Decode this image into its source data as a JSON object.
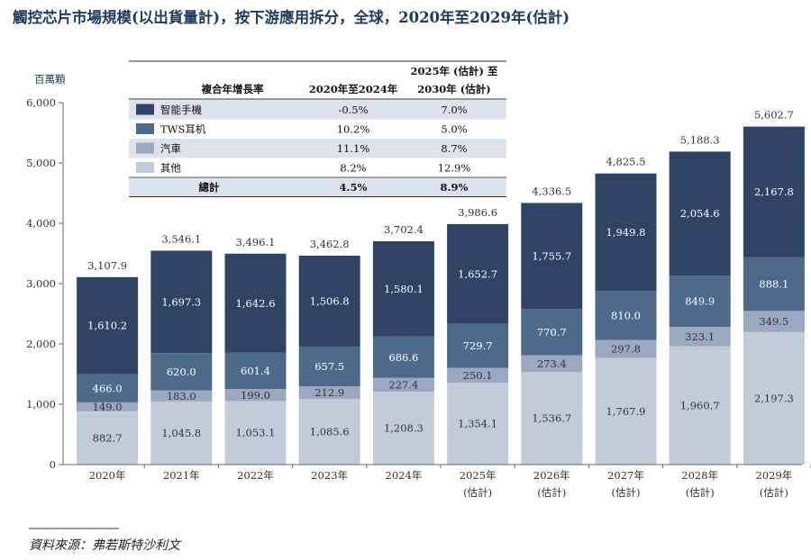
{
  "title": "觸控芯片市場規模(以出貨量計)，按下游應用拆分，全球，2020年至2029年(估計)",
  "source": "資料來源：弗若斯特沙利文",
  "chart_data": {
    "type": "bar",
    "stacked": true,
    "ylabel": "百萬顆",
    "ylim": [
      0,
      6000
    ],
    "yticks": [
      "0",
      "1,000",
      "2,000",
      "3,000",
      "4,000",
      "5,000",
      "6,000"
    ],
    "ytick_values": [
      0,
      1000,
      2000,
      3000,
      4000,
      5000,
      6000
    ],
    "categories": [
      "2020年",
      "2021年",
      "2022年",
      "2023年",
      "2024年",
      "2025年",
      "2026年",
      "2027年",
      "2028年",
      "2029年"
    ],
    "category_sublabels": [
      "",
      "",
      "",
      "",
      "",
      "(估計)",
      "(估計)",
      "(估計)",
      "(估計)",
      "(估計)"
    ],
    "series": [
      {
        "name": "其他",
        "color": "#c2ccd9",
        "values": [
          882.7,
          1045.8,
          1053.1,
          1085.6,
          1208.3,
          1354.1,
          1536.7,
          1767.9,
          1960.7,
          2197.3
        ],
        "labels": [
          "882.7",
          "1,045.8",
          "1,053.1",
          "1,085.6",
          "1,208.3",
          "1,354.1",
          "1,536.7",
          "1,767.9",
          "1,960.7",
          "2,197.3"
        ]
      },
      {
        "name": "汽車",
        "color": "#9aa9c2",
        "values": [
          149.0,
          183.0,
          199.0,
          212.9,
          227.4,
          250.1,
          273.4,
          297.8,
          323.1,
          349.5
        ],
        "labels": [
          "149.0",
          "183.0",
          "199.0",
          "212.9",
          "227.4",
          "250.1",
          "273.4",
          "297.8",
          "323.1",
          "349.5"
        ]
      },
      {
        "name": "TWS耳机",
        "color": "#4e6a8b",
        "values": [
          466.0,
          620.0,
          601.4,
          657.5,
          686.6,
          729.7,
          770.7,
          810.0,
          849.9,
          888.1
        ],
        "labels": [
          "466.0",
          "620.0",
          "601.4",
          "657.5",
          "686.6",
          "729.7",
          "770.7",
          "810.0",
          "849.9",
          "888.1"
        ]
      },
      {
        "name": "智能手機",
        "color": "#2f4365",
        "values": [
          1610.2,
          1697.3,
          1642.6,
          1506.8,
          1580.1,
          1652.7,
          1755.7,
          1949.8,
          2054.6,
          2167.8
        ],
        "labels": [
          "1,610.2",
          "1,697.3",
          "1,642.6",
          "1,506.8",
          "1,580.1",
          "1,652.7",
          "1,755.7",
          "1,949.8",
          "2,054.6",
          "2,167.8"
        ]
      }
    ],
    "totals": [
      3107.9,
      3546.1,
      3496.1,
      3462.8,
      3702.4,
      3986.6,
      4336.5,
      4825.5,
      5188.3,
      5602.7
    ],
    "total_labels": [
      "3,107.9",
      "3,546.1",
      "3,496.1",
      "3,462.8",
      "3,702.4",
      "3,986.6",
      "4,336.5",
      "4,825.5",
      "5,188.3",
      "5,602.7"
    ],
    "legend_table": {
      "header": [
        "複合年增長率",
        "2020年至2024年",
        "2025年 (估計) 至",
        "2030年 (估計)"
      ],
      "rows": [
        {
          "name": "智能手機",
          "color": "#2f4365",
          "cagr1": "-0.5%",
          "cagr2": "7.0%"
        },
        {
          "name": "TWS耳机",
          "color": "#4e6a8b",
          "cagr1": "10.2%",
          "cagr2": "5.0%"
        },
        {
          "name": "汽車",
          "color": "#9aa9c2",
          "cagr1": "11.1%",
          "cagr2": "8.7%"
        },
        {
          "name": "其他",
          "color": "#c2ccd9",
          "cagr1": "8.2%",
          "cagr2": "12.9%"
        }
      ],
      "total_row": {
        "name": "總計",
        "cagr1": "4.5%",
        "cagr2": "8.9%"
      }
    }
  }
}
